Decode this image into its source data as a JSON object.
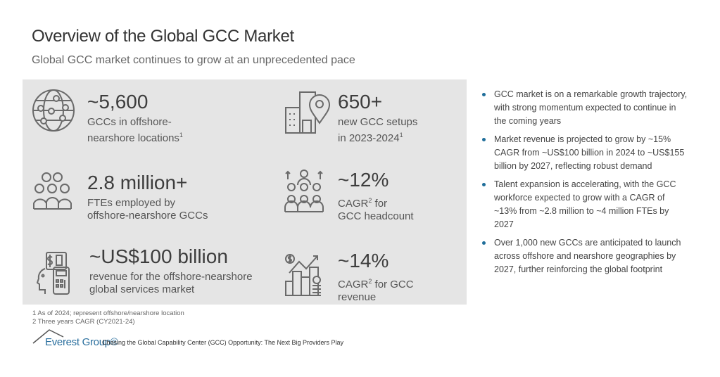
{
  "header": {
    "title": "Overview of the Global GCC Market",
    "subtitle": "Global GCC market continues to grow at an unprecedented pace"
  },
  "stats": [
    {
      "icon": "globe-network-icon",
      "value": "~5,600",
      "line1": "GCCs in offshore-",
      "line2": "nearshore locations",
      "sup": "1"
    },
    {
      "icon": "building-location-pin-icon",
      "value": "650+",
      "line1": "new GCC setups",
      "line2": "in 2023-2024",
      "sup": "1"
    },
    {
      "icon": "people-group-icon",
      "value": "2.8 million+",
      "line1": "FTEs employed by",
      "line2": "offshore-nearshore GCCs"
    },
    {
      "icon": "people-growth-icon",
      "value": "~12%",
      "line1_pre": "CAGR",
      "line1_sup": "2",
      "line1_post": " for",
      "line2": "GCC headcount"
    },
    {
      "icon": "calculator-revenue-icon",
      "value": "~US$100 billion",
      "line1": "revenue for the offshore-nearshore",
      "line2": "global services market"
    },
    {
      "icon": "bar-chart-growth-icon",
      "value": "~14%",
      "line1_pre": "CAGR",
      "line1_sup": "2",
      "line1_post": " for GCC",
      "line2": "revenue"
    }
  ],
  "bullets": [
    "GCC market is on a remarkable growth trajectory, with strong momentum expected to continue in the coming years",
    "Market revenue is projected to grow by ~15% CAGR from ~US$100 billion in 2024 to ~US$155 billion by 2027, reflecting robust demand",
    "Talent expansion is accelerating, with the GCC workforce expected to grow with a CAGR of ~13% from ~2.8 million to ~4 million FTEs by 2027",
    "Over 1,000 new GCCs are anticipated to launch across offshore and nearshore geographies by 2027, further reinforcing the global footprint"
  ],
  "footnotes": [
    "1 As of 2024; represent offshore/nearshore location",
    "2 Three years CAGR (CY2021-24)"
  ],
  "footer": {
    "logo": "Everest Group®",
    "source": "Chasing the Global Capability Center (GCC) Opportunity: The Next Big Providers Play"
  },
  "colors": {
    "panel": "#e5e5e5",
    "bullet": "#1f6e9a",
    "brand": "#2a6f9e"
  }
}
